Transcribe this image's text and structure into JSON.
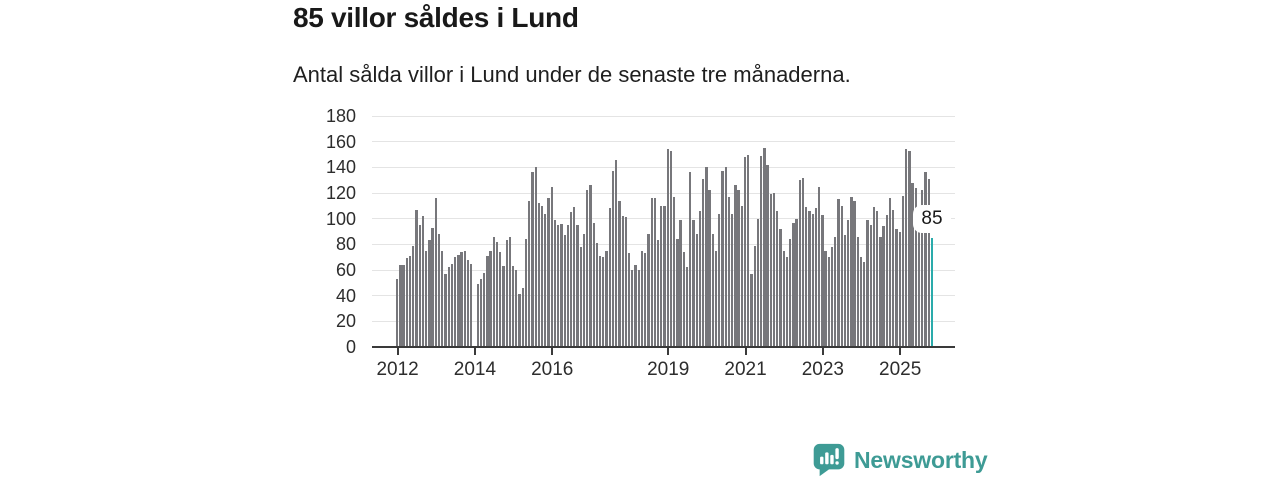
{
  "header": {
    "title": "85 villor såldes i Lund",
    "subtitle": "Antal sålda villor i Lund under de senaste tre månaderna."
  },
  "chart_data": {
    "type": "bar",
    "title": "85 villor såldes i Lund",
    "subtitle": "Antal sålda villor i Lund under de senaste tre månaderna.",
    "xlabel": "",
    "ylabel": "",
    "x_start": "2012-01",
    "x_end": "2025-11",
    "x_unit": "month",
    "ylim": [
      0,
      180
    ],
    "grid": true,
    "y_ticks": [
      0,
      20,
      40,
      60,
      80,
      100,
      120,
      140,
      160,
      180
    ],
    "x_ticks": [
      {
        "label": "2012",
        "index": 0
      },
      {
        "label": "2014",
        "index": 24
      },
      {
        "label": "2016",
        "index": 48
      },
      {
        "label": "2019",
        "index": 84
      },
      {
        "label": "2021",
        "index": 108
      },
      {
        "label": "2023",
        "index": 132
      },
      {
        "label": "2025",
        "index": 156
      }
    ],
    "values": [
      53,
      64,
      64,
      69,
      71,
      79,
      107,
      95,
      102,
      75,
      83,
      93,
      116,
      88,
      75,
      57,
      62,
      65,
      70,
      72,
      74,
      75,
      68,
      65,
      null,
      49,
      53,
      58,
      71,
      75,
      86,
      82,
      74,
      63,
      83,
      86,
      63,
      60,
      41,
      46,
      84,
      114,
      136,
      140,
      112,
      110,
      104,
      116,
      125,
      99,
      95,
      96,
      87,
      95,
      105,
      109,
      95,
      78,
      88,
      122,
      126,
      97,
      81,
      71,
      70,
      75,
      108,
      137,
      146,
      114,
      102,
      101,
      73,
      60,
      64,
      60,
      75,
      73,
      88,
      116,
      116,
      83,
      110,
      110,
      154,
      153,
      117,
      84,
      99,
      74,
      62,
      136,
      99,
      88,
      106,
      131,
      140,
      122,
      88,
      75,
      104,
      137,
      140,
      117,
      104,
      126,
      122,
      110,
      148,
      150,
      57,
      79,
      100,
      149,
      155,
      142,
      119,
      120,
      106,
      92,
      75,
      70,
      84,
      97,
      100,
      130,
      132,
      109,
      106,
      104,
      108,
      125,
      103,
      75,
      70,
      78,
      86,
      115,
      110,
      87,
      99,
      117,
      114,
      86,
      70,
      66,
      99,
      95,
      109,
      106,
      86,
      94,
      103,
      116,
      107,
      92,
      90,
      118,
      154,
      153,
      128,
      124,
      92,
      122,
      136,
      131,
      85
    ],
    "highlight": {
      "index": 166,
      "value": 85,
      "label": "85",
      "color": "#2aabab"
    },
    "bar_color": "#77777b",
    "legend": null
  },
  "branding": {
    "name": "Newsworthy",
    "color": "#3e9b95"
  }
}
